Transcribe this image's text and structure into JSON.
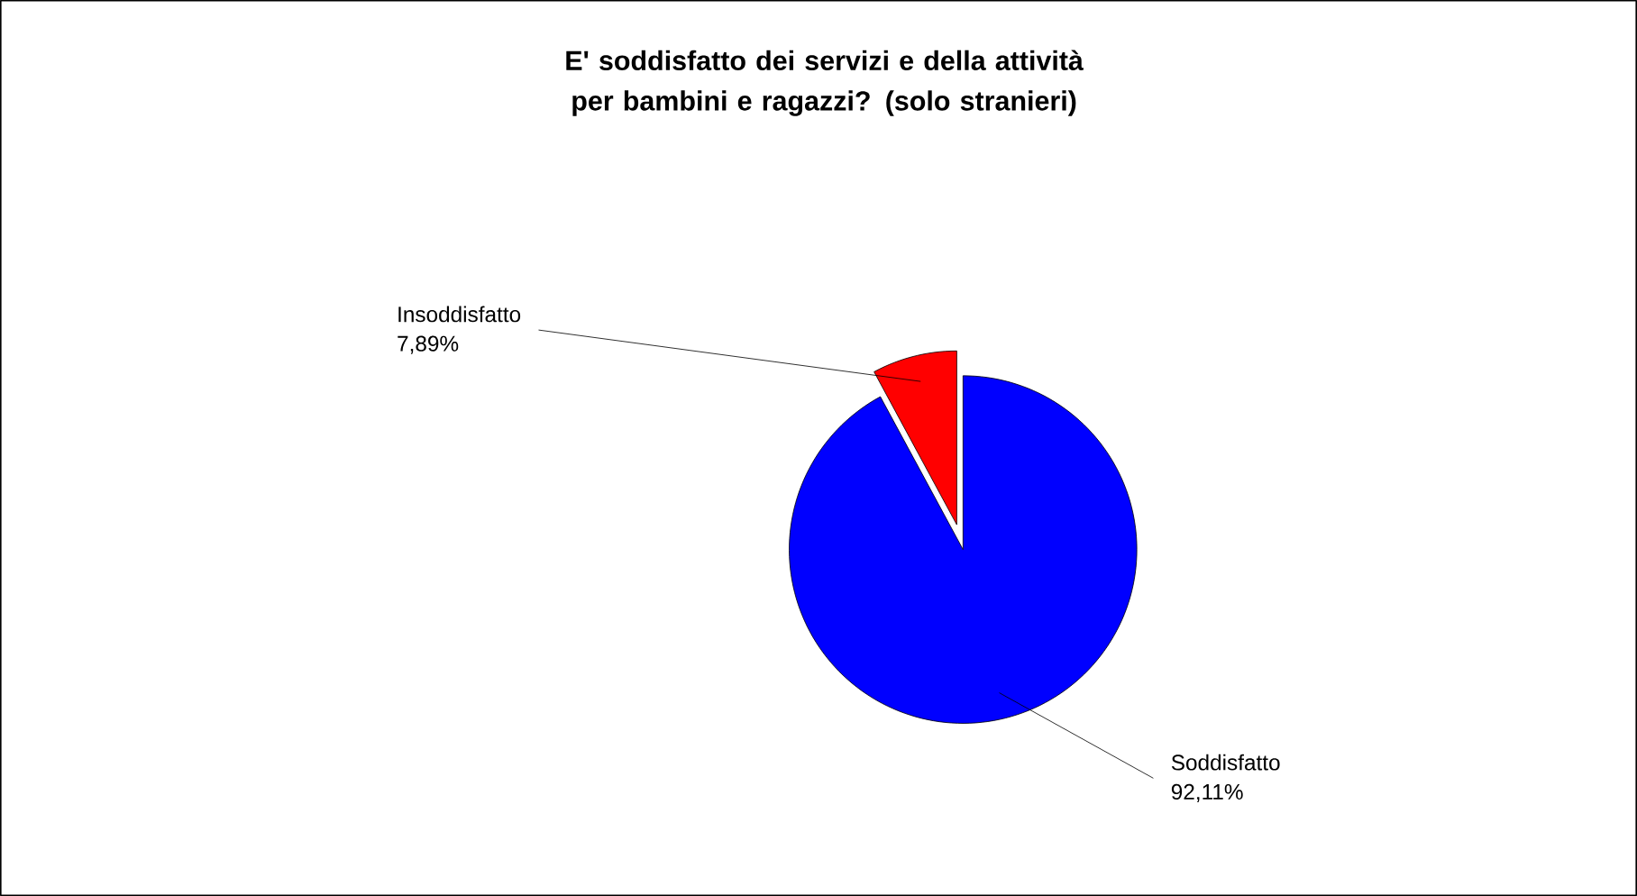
{
  "chart_data": {
    "type": "pie",
    "title": "E' soddisfatto dei servizi e della attività per bambini e ragazzi? (solo stranieri)",
    "categories": [
      "Insoddisfatto",
      "Soddisfatto"
    ],
    "values": [
      7.89,
      92.11
    ],
    "colors": [
      "#ff0000",
      "#0000ff"
    ],
    "value_labels": [
      "7,89%",
      "92,11%"
    ]
  }
}
